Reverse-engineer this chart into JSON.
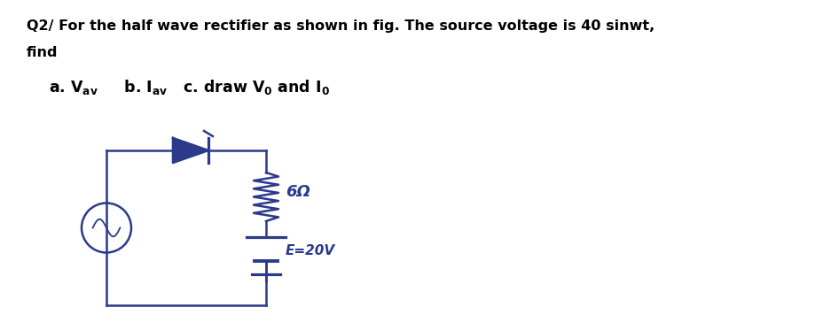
{
  "title_line1": "Q2/ For the half wave rectifier as shown in fig. The source voltage is 40 sinwt,",
  "title_line2": "find",
  "bg_color": "#ffffff",
  "text_color": "#000000",
  "pen_color": "#2b3a8a",
  "resistor_label": "6Ω",
  "battery_label": "E=20V",
  "figsize": [
    9.29,
    3.73
  ],
  "dpi": 100
}
